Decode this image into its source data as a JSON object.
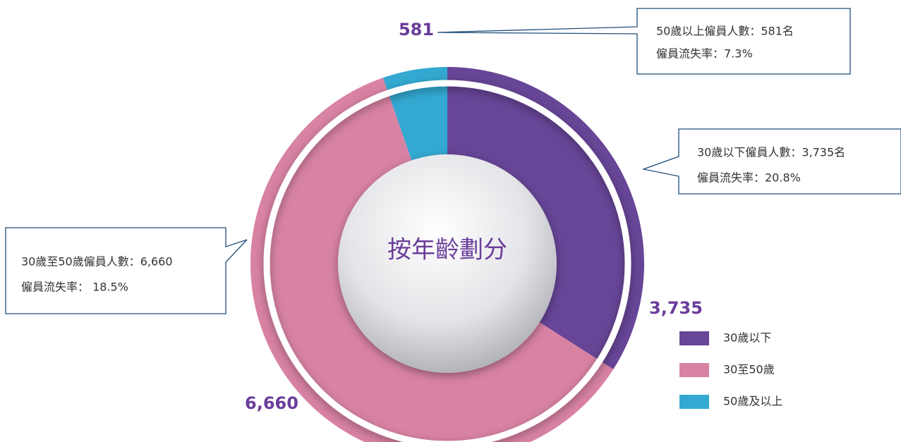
{
  "chart_data": {
    "type": "donut",
    "title": "按年齡劃分",
    "series": [
      {
        "name": "30歲以下",
        "color": "#674597",
        "values": [
          3735
        ],
        "value_labels": [
          "3,735"
        ]
      },
      {
        "name": "30至50歲",
        "color": "#d882a4",
        "values": [
          6660
        ],
        "value_labels": [
          "6,660"
        ]
      },
      {
        "name": "50歲及以上",
        "color": "#33a9d1",
        "values": [
          581
        ],
        "value_labels": [
          "581"
        ]
      }
    ],
    "annotations": [
      [
        "30歲以下僱員人數：3,735名",
        "僱員流失率：20.8%"
      ],
      [
        "30歲至50歲僱員人數：6,660",
        "僱員流失率： 18.5%"
      ],
      [
        "50歲以上僱員人數：581名",
        "僱員流失率：7.3%"
      ]
    ]
  }
}
